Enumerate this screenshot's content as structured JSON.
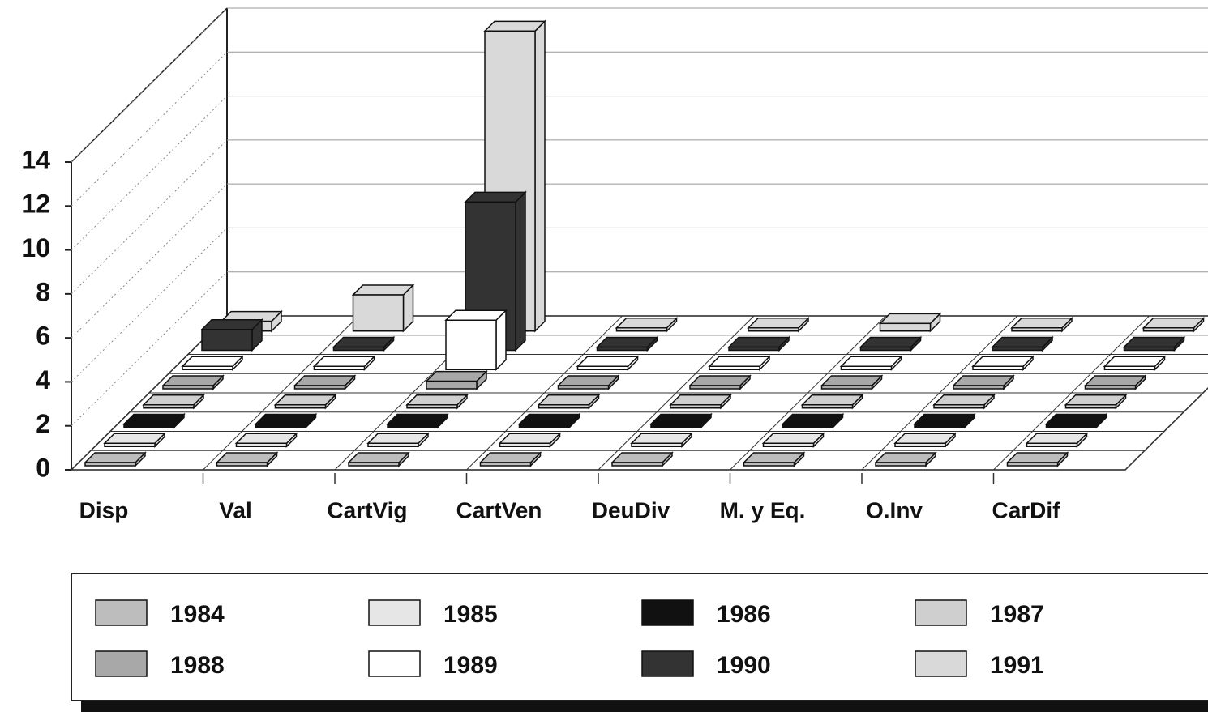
{
  "chart_data": {
    "type": "bar3d",
    "categories": [
      "Disp",
      "Val",
      "CartVig",
      "CartVen",
      "DeuDiv",
      "M. y Eq.",
      "O.Inv",
      "CarDif"
    ],
    "series": [
      {
        "name": "1984",
        "color": "#bdbdbd",
        "values": [
          0,
          0,
          0,
          0,
          0,
          0,
          0,
          0
        ]
      },
      {
        "name": "1985",
        "color": "#e6e6e6",
        "values": [
          0,
          0,
          0,
          0,
          0,
          0,
          0,
          0
        ]
      },
      {
        "name": "1986",
        "color": "#111111",
        "values": [
          0,
          0,
          0,
          0,
          0,
          0,
          0,
          0
        ]
      },
      {
        "name": "1987",
        "color": "#cfcfcf",
        "values": [
          0,
          0,
          0,
          0,
          0,
          0,
          0,
          0
        ]
      },
      {
        "name": "1988",
        "color": "#a8a8a8",
        "values": [
          0,
          0,
          0.2,
          0,
          0,
          0,
          0,
          0
        ]
      },
      {
        "name": "1989",
        "color": "#ffffff",
        "values": [
          0,
          0,
          2.1,
          0,
          0,
          0,
          0,
          0
        ]
      },
      {
        "name": "1990",
        "color": "#333333",
        "values": [
          0.8,
          0,
          6.6,
          0,
          0,
          0,
          0,
          0
        ]
      },
      {
        "name": "1991",
        "color": "#d9d9d9",
        "values": [
          0.3,
          1.5,
          13.5,
          0,
          0,
          0.2,
          0,
          0
        ]
      }
    ],
    "ylim": [
      0,
      14
    ],
    "yticks": [
      0,
      2,
      4,
      6,
      8,
      10,
      12,
      14
    ],
    "grid": true
  }
}
